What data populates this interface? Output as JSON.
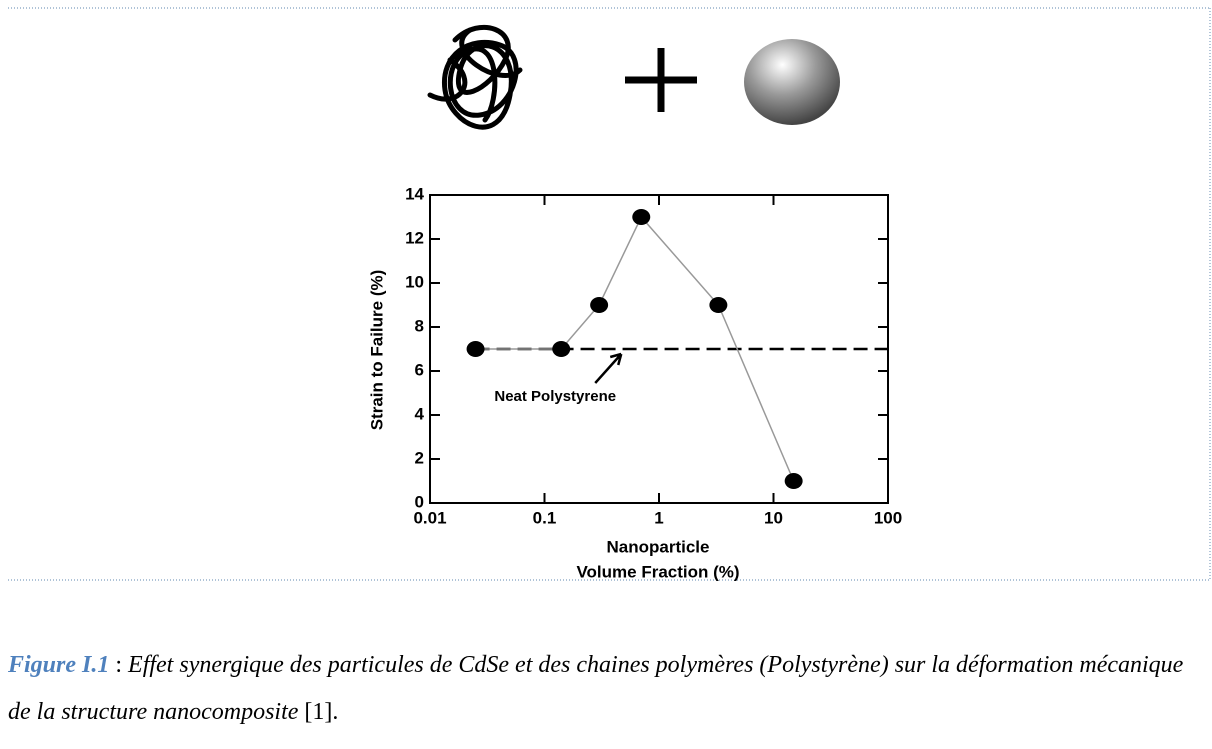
{
  "chart_data": {
    "type": "line",
    "ylabel": "Strain to Failure (%)",
    "xlabel": [
      "Nanoparticle",
      "Volume Fraction (%)"
    ],
    "x": [
      0.025,
      0.14,
      0.3,
      0.7,
      3.3,
      15
    ],
    "values": [
      7,
      7,
      9,
      13,
      9,
      1
    ],
    "color": "#000000",
    "xscale": "log",
    "xlim": [
      0.01,
      100
    ],
    "xticks": [
      0.01,
      0.1,
      1,
      10,
      100
    ],
    "ylim": [
      0,
      14
    ],
    "yticks": [
      0,
      2,
      4,
      6,
      8,
      10,
      12,
      14
    ],
    "reference_line": {
      "value": 7,
      "label": "Neat Polystyrene"
    }
  },
  "caption": {
    "label": "Figure I.1",
    "separator": ":",
    "text": "Effet synergique des particules de CdSe et des chaines polymères (Polystyrène) sur la déformation mécanique de la structure nanocomposite",
    "reference": "[1]."
  }
}
